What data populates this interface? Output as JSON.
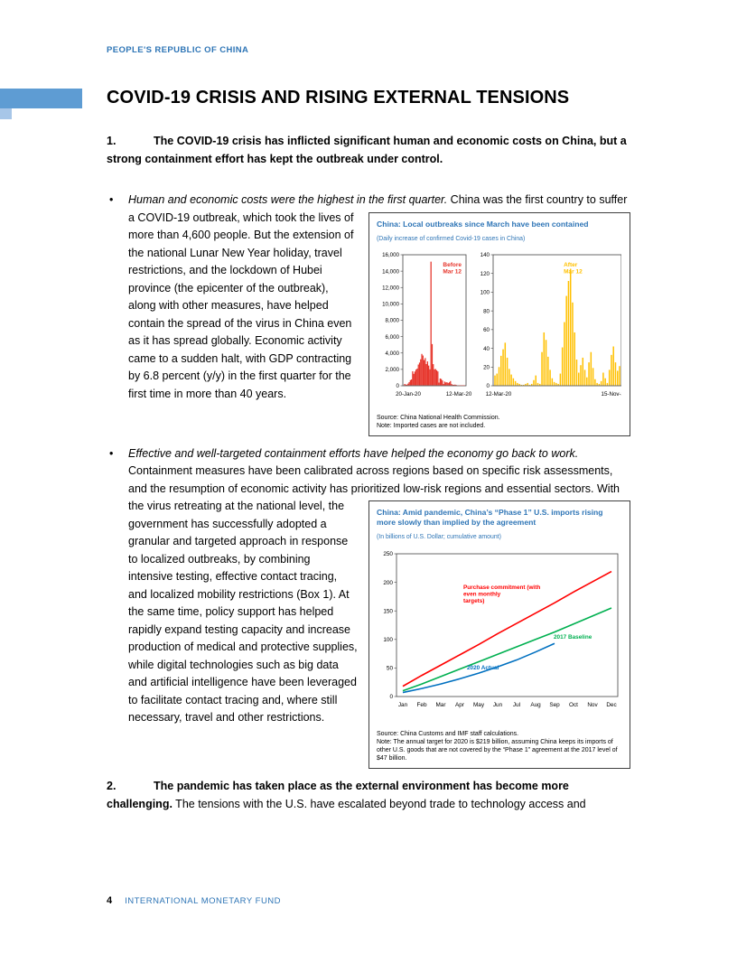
{
  "page": {
    "header": "PEOPLE'S REPUBLIC OF CHINA",
    "title": "COVID-19 CRISIS AND RISING EXTERNAL TENSIONS",
    "bullet_char": "•",
    "footer": {
      "page_number": "4",
      "text": "INTERNATIONAL MONETARY FUND"
    }
  },
  "colors": {
    "accent_blue": "#5E9CD3",
    "heading_blue": "#2E75B6"
  },
  "paragraphs": {
    "p1_number": "1.",
    "p1_bold": "The COVID-19 crisis has inflicted significant human and economic costs on China, but a strong containment effort has kept the outbreak under control.",
    "p2_number": "2.",
    "p2_bold": "The pandemic has taken place as the external environment has become more challenging.",
    "p2_text": " The tensions with the U.S. have escalated beyond trade to technology access and"
  },
  "bullets": {
    "b1": {
      "lead": "Human and economic costs were the highest in the first quarter.",
      "text_before": " China was the first country to ",
      "text_after": "suffer a COVID-19 outbreak, which took the lives of more than 4,600 people. But the extension of the national Lunar New Year holiday, travel restrictions, and the lockdown of Hubei province (the epicenter of the outbreak), along with other measures, have helped contain the spread of the virus in China even as it has spread globally. Economic activity came to a sudden halt, with GDP contracting by 6.8 percent (y/y) in the first quarter for the first time in more than 40 years."
    },
    "b2": {
      "lead": "Effective and well-targeted containment efforts have helped the economy go back to work.",
      "text_before": " Containment measures have been calibrated across regions based on specific risk assessments, and the resumption of economic activity has prioritized low-risk regions and ",
      "text_after": "essential sectors. With the virus retreating at the national level, the government has successfully adopted a granular and targeted approach in response to localized outbreaks, by combining intensive testing, effective contact tracing, and localized mobility restrictions (Box 1). At the same time, policy support has helped rapidly expand testing capacity and increase production of medical and protective supplies, while digital technologies such as big data and artificial intelligence have been leveraged to facilitate contact tracing and, where still necessary, travel and other restrictions."
    }
  },
  "chart_data": [
    {
      "type": "bar",
      "title": "China: Local outbreaks since March have been contained",
      "subtitle": "(Daily increase of confirmed Covid-19 cases in China)",
      "source": "Source: China National Health Commission.",
      "note": "Note: Imported cases are not included.",
      "panels": [
        {
          "annotation": [
            "Before",
            "Mar 12"
          ],
          "color": "#E63329",
          "ylim": [
            0,
            16000
          ],
          "yticks": [
            0,
            2000,
            4000,
            6000,
            8000,
            10000,
            12000,
            14000,
            16000
          ],
          "x_labels": [
            "20-Jan-20",
            "12-Mar-20"
          ],
          "values": [
            217,
            149,
            131,
            259,
            444,
            688,
            769,
            1771,
            1459,
            1737,
            1982,
            2102,
            2590,
            2829,
            3235,
            3887,
            3694,
            3143,
            3385,
            2652,
            2973,
            2467,
            2015,
            15152,
            5090,
            2641,
            2009,
            2048,
            1888,
            1749,
            391,
            889,
            823,
            648,
            214,
            508,
            406,
            433,
            327,
            427,
            573,
            202,
            125,
            119,
            139,
            99,
            44,
            40,
            19,
            24,
            15,
            20,
            11
          ]
        },
        {
          "annotation": [
            "After",
            "Mar 12"
          ],
          "color": "#FFC000",
          "ylim": [
            0,
            140
          ],
          "yticks": [
            0,
            20,
            40,
            60,
            80,
            100,
            120,
            140
          ],
          "x_labels": [
            "12-Mar-20",
            "15-Nov-20"
          ],
          "values": [
            11,
            13,
            20,
            32,
            39,
            46,
            30,
            18,
            12,
            8,
            5,
            3,
            2,
            1,
            1,
            2,
            3,
            1,
            2,
            6,
            11,
            3,
            2,
            36,
            57,
            49,
            31,
            17,
            8,
            4,
            3,
            2,
            13,
            41,
            68,
            96,
            112,
            125,
            89,
            57,
            28,
            14,
            22,
            30,
            17,
            9,
            25,
            36,
            19,
            7,
            3,
            2,
            5,
            14,
            8,
            3,
            17,
            33,
            42,
            25,
            16,
            21
          ]
        }
      ]
    },
    {
      "type": "line",
      "title": "China: Amid pandemic, China’s “Phase 1” U.S. imports rising more slowly than implied by the agreement",
      "subtitle": "(In billions of U.S. Dollar; cumulative amount)",
      "source": "Source: China Customs and IMF staff calculations.",
      "note": "Note: The annual target for 2020 is $219 billion, assuming China keeps its imports of other U.S. goods that are not covered by the “Phase 1” agreement at the 2017 level of $47 billion.",
      "ylim": [
        0,
        250
      ],
      "yticks": [
        0,
        50,
        100,
        150,
        200,
        250
      ],
      "categories": [
        "Jan",
        "Feb",
        "Mar",
        "Apr",
        "May",
        "Jun",
        "Jul",
        "Aug",
        "Sep",
        "Oct",
        "Nov",
        "Dec"
      ],
      "series": [
        {
          "name": "Purchase commitment (with even monthly targets)",
          "label_lines": [
            "Purchase commitment (with",
            "even monthly",
            "targets)"
          ],
          "color": "#FF0000",
          "values": [
            18,
            37,
            55,
            73,
            91,
            110,
            128,
            146,
            164,
            183,
            201,
            219
          ]
        },
        {
          "name": "2017 Baseline",
          "label_lines": [
            "2017 Baseline"
          ],
          "color": "#00B050",
          "values": [
            10,
            22,
            35,
            48,
            61,
            74,
            87,
            100,
            113,
            127,
            141,
            155
          ]
        },
        {
          "name": "2020 Actual",
          "label_lines": [
            "2020 Actual"
          ],
          "color": "#0070C0",
          "values": [
            7,
            14,
            22,
            31,
            41,
            52,
            64,
            78,
            93
          ]
        }
      ]
    }
  ]
}
